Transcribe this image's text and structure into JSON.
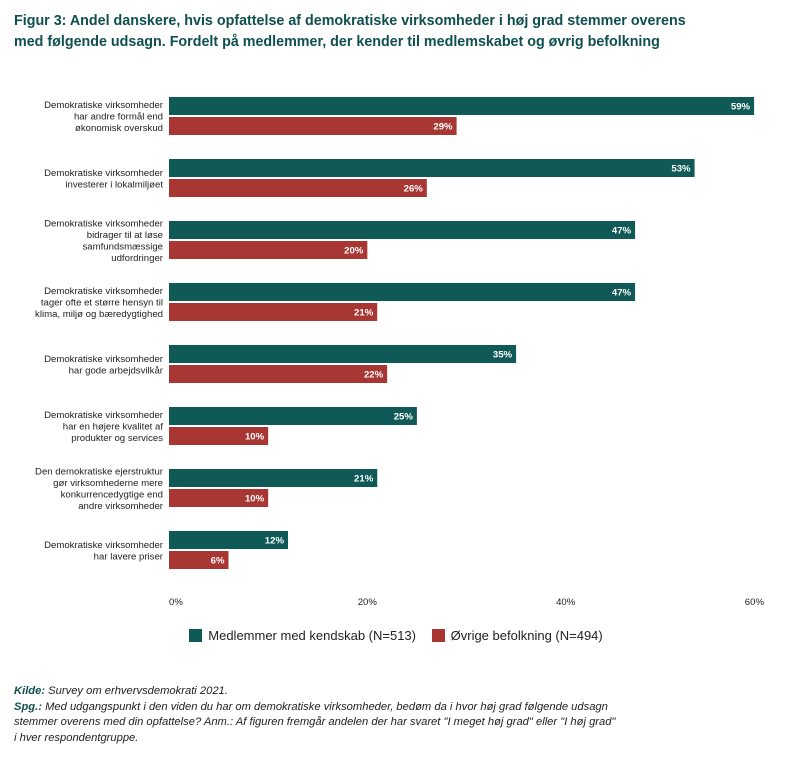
{
  "title_lines": [
    "Figur 3: Andel danskere, hvis opfattelse af demokratiske virksomheder i høj grad stemmer overens",
    "med følgende udsagn. Fordelt på medlemmer, der kender til medlemskabet og øvrig befolkning"
  ],
  "colors": {
    "members": "#0f5a56",
    "others": "#a83632"
  },
  "chart_data": {
    "type": "bar",
    "orientation": "horizontal",
    "categories": [
      [
        "Demokratiske virksomheder",
        "har andre formål end",
        "økonomisk overskud"
      ],
      [
        "Demokratiske virksomheder",
        "investerer i lokalmiljøet"
      ],
      [
        "Demokratiske virksomheder",
        "bidrager til at løse",
        "samfundsmæssige",
        "udfordringer"
      ],
      [
        "Demokratiske virksomheder",
        "tager ofte et større hensyn til",
        "klima, miljø og bæredygtighed"
      ],
      [
        "Demokratiske virksomheder",
        "har gode arbejdsvilkår"
      ],
      [
        "Demokratiske virksomheder",
        "har en højere kvalitet af",
        "produkter og services"
      ],
      [
        "Den demokratiske ejerstruktur",
        "gør virksomhederne mere",
        "konkurrencedygtige end",
        "andre virksomheder"
      ],
      [
        "Demokratiske virksomheder",
        "har lavere priser"
      ]
    ],
    "series": [
      {
        "name": "Medlemmer med kendskab (N=513)",
        "values": [
          59,
          53,
          47,
          47,
          35,
          25,
          21,
          12
        ]
      },
      {
        "name": "Øvrige befolkning (N=494)",
        "values": [
          29,
          26,
          20,
          21,
          22,
          10,
          10,
          6
        ]
      }
    ],
    "xlim": [
      0,
      60
    ],
    "xticks": [
      "0%",
      "20%",
      "40%",
      "60%"
    ],
    "xtick_values": [
      0,
      20,
      40,
      60
    ],
    "value_suffix": "%",
    "grid": false,
    "legend_position": "bottom"
  },
  "footer": {
    "source_label": "Kilde:",
    "source_text": " Survey om erhvervsdemokrati 2021.",
    "question_label": "Spg.:",
    "question_lines": [
      " Med udgangspunkt i den viden du har om demokratiske virksomheder, bedøm da i hvor høj grad følgende udsagn",
      "stemmer overens med din opfattelse? Anm.: Af figuren fremgår andelen der har svaret \"I meget høj grad\" eller \"I høj grad\"",
      "i hver respondentgruppe."
    ]
  }
}
